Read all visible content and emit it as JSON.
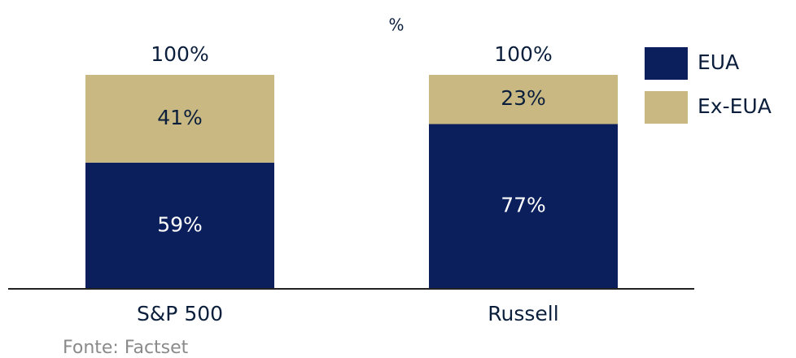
{
  "chart_data": {
    "type": "stacked-bar",
    "subtitle": "%",
    "categories": [
      "S&P 500",
      "Russell"
    ],
    "series": [
      {
        "name": "EUA",
        "color": "#0b1f5c",
        "values": [
          59,
          77
        ],
        "value_labels": [
          "59%",
          "77%"
        ],
        "label_color": "#ffffff"
      },
      {
        "name": "Ex-EUA",
        "color": "#c9b882",
        "values": [
          41,
          23
        ],
        "value_labels": [
          "41%",
          "23%"
        ],
        "label_color": "#0b1f3c"
      }
    ],
    "totals": [
      100,
      100
    ],
    "total_labels": [
      "100%",
      "100%"
    ],
    "ylim": [
      0,
      100
    ],
    "source": "Fonte: Factset"
  }
}
